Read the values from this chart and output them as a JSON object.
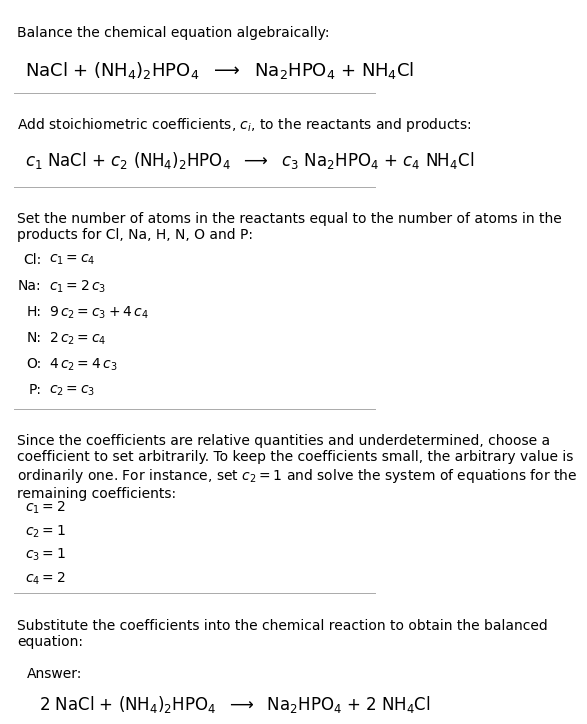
{
  "bg_color": "#ffffff",
  "text_color": "#000000",
  "section1_title": "Balance the chemical equation algebraically:",
  "section1_eq": "NaCl + (NH$_4$)$_2$HPO$_4$  $\\longrightarrow$  Na$_2$HPO$_4$ + NH$_4$Cl",
  "section2_title": "Add stoichiometric coefficients, $c_i$, to the reactants and products:",
  "section2_eq": "$c_1$ NaCl + $c_2$ (NH$_4$)$_2$HPO$_4$  $\\longrightarrow$  $c_3$ Na$_2$HPO$_4$ + $c_4$ NH$_4$Cl",
  "section3_title": "Set the number of atoms in the reactants equal to the number of atoms in the\nproducts for Cl, Na, H, N, O and P:",
  "section3_equations": [
    [
      "Cl:",
      "$c_1 = c_4$"
    ],
    [
      "Na:",
      "$c_1 = 2\\,c_3$"
    ],
    [
      "H:",
      "$9\\,c_2 = c_3 + 4\\,c_4$"
    ],
    [
      "N:",
      "$2\\,c_2 = c_4$"
    ],
    [
      "O:",
      "$4\\,c_2 = 4\\,c_3$"
    ],
    [
      "P:",
      "$c_2 = c_3$"
    ]
  ],
  "section4_title": "Since the coefficients are relative quantities and underdetermined, choose a\ncoefficient to set arbitrarily. To keep the coefficients small, the arbitrary value is\nordinarily one. For instance, set $c_2 = 1$ and solve the system of equations for the\nremaining coefficients:",
  "section4_values": [
    "$c_1 = 2$",
    "$c_2 = 1$",
    "$c_3 = 1$",
    "$c_4 = 2$"
  ],
  "section5_title": "Substitute the coefficients into the chemical reaction to obtain the balanced\nequation:",
  "answer_label": "Answer:",
  "answer_eq": "2 NaCl + (NH$_4$)$_2$HPO$_4$  $\\longrightarrow$  Na$_2$HPO$_4$ + 2 NH$_4$Cl",
  "answer_box_color": "#d0eaf8",
  "answer_box_edge": "#7ab8d9",
  "divider_color": "#aaaaaa",
  "font_size_title": 10,
  "font_size_eq": 12,
  "font_size_small": 10
}
